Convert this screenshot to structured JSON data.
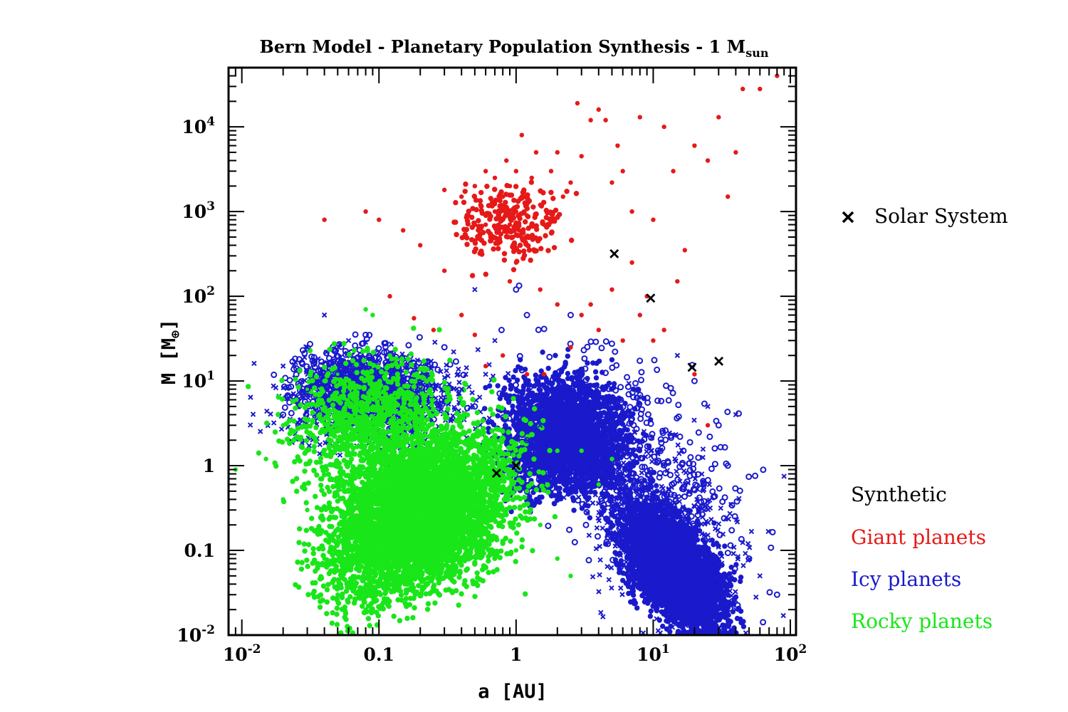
{
  "chart_data": {
    "type": "scatter",
    "title": "Bern Model - Planetary Population Synthesis - 1 M",
    "title_sub": "sun",
    "xlabel": "a [AU]",
    "ylabel_main": "M [M",
    "ylabel_sub": "⊕",
    "ylabel_close": "]",
    "x_scale": "log",
    "y_scale": "log",
    "xlim": [
      0.008,
      110
    ],
    "ylim": [
      0.01,
      50000
    ],
    "x_ticks": [
      {
        "value": 0.01,
        "base": "10",
        "exp": "-2"
      },
      {
        "value": 0.1,
        "base": "0.1",
        "exp": ""
      },
      {
        "value": 1,
        "base": "1",
        "exp": ""
      },
      {
        "value": 10,
        "base": "10",
        "exp": "1"
      },
      {
        "value": 100,
        "base": "10",
        "exp": "2"
      }
    ],
    "y_ticks": [
      {
        "value": 0.01,
        "base": "10",
        "exp": "-2"
      },
      {
        "value": 0.1,
        "base": "0.1",
        "exp": ""
      },
      {
        "value": 1,
        "base": "1",
        "exp": ""
      },
      {
        "value": 10,
        "base": "10",
        "exp": "1"
      },
      {
        "value": 100,
        "base": "10",
        "exp": "2"
      },
      {
        "value": 1000,
        "base": "10",
        "exp": "3"
      },
      {
        "value": 10000,
        "base": "10",
        "exp": "4"
      }
    ],
    "grid": false,
    "legend_marker": {
      "label": "Solar System",
      "symbol": "x",
      "color": "#000000",
      "position": "right"
    },
    "legend_text": {
      "heading": "Synthetic",
      "heading_color": "#000000",
      "items": [
        {
          "label": "Giant planets",
          "color": "#e61919"
        },
        {
          "label": "Icy planets",
          "color": "#1a1acc"
        },
        {
          "label": "Rocky planets",
          "color": "#19e619"
        }
      ],
      "position": "bottom-right"
    },
    "series": [
      {
        "name": "Solar System",
        "color": "#000000",
        "marker": "x",
        "points": [
          [
            0.72,
            0.815
          ],
          [
            1.0,
            1.0
          ],
          [
            5.2,
            318
          ],
          [
            9.58,
            95
          ],
          [
            19.2,
            14.5
          ],
          [
            30.1,
            17.1
          ]
        ]
      },
      {
        "name": "Giant planets",
        "color": "#e61919",
        "marker": "dot",
        "points": [
          [
            0.04,
            800
          ],
          [
            0.08,
            1000
          ],
          [
            0.1,
            800
          ],
          [
            0.15,
            600
          ],
          [
            0.2,
            400
          ],
          [
            0.3,
            1800
          ],
          [
            0.4,
            1500
          ],
          [
            0.45,
            900
          ],
          [
            0.5,
            700
          ],
          [
            0.5,
            2000
          ],
          [
            0.55,
            1200
          ],
          [
            0.6,
            700
          ],
          [
            0.6,
            3000
          ],
          [
            0.65,
            500
          ],
          [
            0.7,
            1000
          ],
          [
            0.7,
            2500
          ],
          [
            0.75,
            600
          ],
          [
            0.8,
            1500
          ],
          [
            0.8,
            800
          ],
          [
            0.85,
            4000
          ],
          [
            0.9,
            700
          ],
          [
            0.9,
            2000
          ],
          [
            0.95,
            500
          ],
          [
            1.0,
            1000
          ],
          [
            1.0,
            3000
          ],
          [
            1.05,
            600
          ],
          [
            1.1,
            1500
          ],
          [
            1.1,
            8000
          ],
          [
            1.2,
            900
          ],
          [
            1.2,
            400
          ],
          [
            1.3,
            2500
          ],
          [
            1.4,
            5000
          ],
          [
            1.5,
            1200
          ],
          [
            1.6,
            700
          ],
          [
            1.8,
            3000
          ],
          [
            2.0,
            5000
          ],
          [
            2.2,
            1500
          ],
          [
            2.5,
            2200
          ],
          [
            2.8,
            19000
          ],
          [
            3.0,
            4500
          ],
          [
            3.5,
            12000
          ],
          [
            4.0,
            16000
          ],
          [
            4.5,
            12000
          ],
          [
            5.0,
            2200
          ],
          [
            5.5,
            6000
          ],
          [
            6.0,
            3000
          ],
          [
            7.0,
            1000
          ],
          [
            8.0,
            13000
          ],
          [
            10.0,
            800
          ],
          [
            12.0,
            10000
          ],
          [
            14.0,
            3000
          ],
          [
            17.0,
            350
          ],
          [
            20.0,
            6000
          ],
          [
            25.0,
            4000
          ],
          [
            30.0,
            13000
          ],
          [
            35.0,
            1500
          ],
          [
            40.0,
            5000
          ],
          [
            45.0,
            28000
          ],
          [
            60.0,
            28000
          ],
          [
            80.0,
            40000
          ],
          [
            0.9,
            150
          ],
          [
            1.0,
            250
          ],
          [
            1.5,
            120
          ],
          [
            2.0,
            80
          ],
          [
            3.0,
            60
          ],
          [
            4.0,
            40
          ],
          [
            6.0,
            30
          ],
          [
            8.0,
            60
          ],
          [
            10.0,
            30
          ],
          [
            0.3,
            200
          ],
          [
            0.4,
            60
          ],
          [
            0.5,
            35
          ],
          [
            0.6,
            15
          ],
          [
            0.8,
            20
          ],
          [
            1.2,
            12
          ],
          [
            1.6,
            12
          ],
          [
            2.5,
            25
          ],
          [
            3.5,
            80
          ],
          [
            5.0,
            120
          ],
          [
            7.0,
            250
          ],
          [
            9.0,
            100
          ],
          [
            12.0,
            40
          ],
          [
            15.0,
            150
          ],
          [
            20.0,
            12
          ],
          [
            25.0,
            3
          ],
          [
            0.25,
            40
          ],
          [
            0.12,
            100
          ],
          [
            0.18,
            55
          ]
        ]
      },
      {
        "name": "Icy planets",
        "color": "#1a1acc",
        "marker": "mixed",
        "points": [
          [
            0.02,
            15
          ],
          [
            0.02,
            4
          ],
          [
            0.03,
            25
          ],
          [
            0.03,
            8
          ],
          [
            0.04,
            60
          ],
          [
            0.05,
            12
          ],
          [
            0.06,
            30
          ],
          [
            0.08,
            35
          ],
          [
            0.1,
            20
          ],
          [
            0.15,
            10
          ],
          [
            0.2,
            8
          ],
          [
            0.3,
            25
          ],
          [
            0.4,
            8
          ],
          [
            0.5,
            5
          ],
          [
            0.6,
            12
          ],
          [
            0.8,
            7
          ],
          [
            1.0,
            4
          ],
          [
            1.2,
            2
          ],
          [
            1.5,
            3
          ],
          [
            2.0,
            5
          ],
          [
            2.5,
            1.5
          ],
          [
            3.0,
            4
          ],
          [
            4.0,
            2
          ],
          [
            5.0,
            1.2
          ],
          [
            6.0,
            0.6
          ],
          [
            7.0,
            0.3
          ],
          [
            8.0,
            0.15
          ],
          [
            10.0,
            0.1
          ],
          [
            12.0,
            0.05
          ],
          [
            15.0,
            0.03
          ],
          [
            20.0,
            0.02
          ],
          [
            25.0,
            0.015
          ],
          [
            30.0,
            0.012
          ],
          [
            35.0,
            0.05
          ],
          [
            40.0,
            0.02
          ],
          [
            50.0,
            0.08
          ],
          [
            60.0,
            0.05
          ],
          [
            80.0,
            0.03
          ],
          [
            90.0,
            0.75
          ],
          [
            30.0,
            3
          ],
          [
            25.0,
            5
          ],
          [
            20.0,
            10
          ],
          [
            15.0,
            20
          ],
          [
            35.0,
            1
          ],
          [
            40.0,
            4
          ],
          [
            1.0,
            120
          ],
          [
            0.5,
            120
          ],
          [
            1.2,
            60
          ],
          [
            0.7,
            30
          ],
          [
            2.5,
            60
          ]
        ]
      },
      {
        "name": "Rocky planets",
        "color": "#19e619",
        "marker": "dot",
        "points": [
          [
            0.009,
            0.9
          ],
          [
            0.015,
            1.2
          ],
          [
            0.02,
            3
          ],
          [
            0.02,
            0.4
          ],
          [
            0.025,
            6
          ],
          [
            0.03,
            1.5
          ],
          [
            0.03,
            0.3
          ],
          [
            0.04,
            10
          ],
          [
            0.04,
            0.08
          ],
          [
            0.05,
            2
          ],
          [
            0.05,
            0.03
          ],
          [
            0.06,
            0.6
          ],
          [
            0.08,
            5
          ],
          [
            0.08,
            0.02
          ],
          [
            0.1,
            1.5
          ],
          [
            0.1,
            0.15
          ],
          [
            0.15,
            3
          ],
          [
            0.15,
            0.05
          ],
          [
            0.2,
            1
          ],
          [
            0.2,
            0.3
          ],
          [
            0.3,
            2
          ],
          [
            0.3,
            0.1
          ],
          [
            0.4,
            0.8
          ],
          [
            0.5,
            0.4
          ],
          [
            0.6,
            1.2
          ],
          [
            0.8,
            0.3
          ],
          [
            1.0,
            0.1
          ],
          [
            1.2,
            0.5
          ],
          [
            1.5,
            0.2
          ],
          [
            2.0,
            0.08
          ],
          [
            2.5,
            0.05
          ],
          [
            2.0,
            1.5
          ],
          [
            3.0,
            1.5
          ],
          [
            4.0,
            0.6
          ],
          [
            5.0,
            1.2
          ],
          [
            0.08,
            70
          ],
          [
            0.09,
            60
          ],
          [
            0.12,
            20
          ]
        ]
      }
    ]
  }
}
